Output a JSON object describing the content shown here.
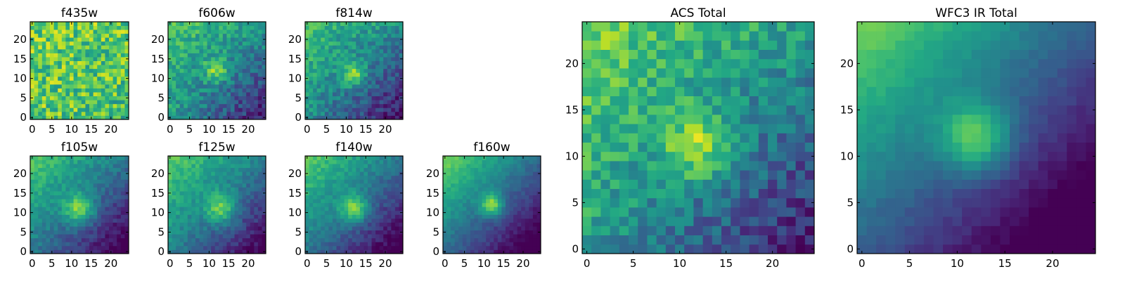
{
  "chart_data": [
    {
      "type": "heatmap",
      "title": "f435w",
      "colormap": "viridis",
      "xticks": [
        "0",
        "5",
        "10",
        "15",
        "20"
      ],
      "yticks": [
        "0",
        "5",
        "10",
        "15",
        "20"
      ],
      "xlim": [
        -0.5,
        24.5
      ],
      "ylim": [
        -0.5,
        24.5
      ],
      "grid": false,
      "peak": [
        12,
        11
      ],
      "peak_sigma": 3.0,
      "peak_strength": 0.0,
      "corner_bright": 0.0,
      "noise": 0.22,
      "base": 0.75,
      "seed": 11
    },
    {
      "type": "heatmap",
      "title": "f606w",
      "colormap": "viridis",
      "xticks": [
        "0",
        "5",
        "10",
        "15",
        "20"
      ],
      "yticks": [
        "0",
        "5",
        "10",
        "15",
        "20"
      ],
      "xlim": [
        -0.5,
        24.5
      ],
      "ylim": [
        -0.5,
        24.5
      ],
      "grid": false,
      "peak": [
        12,
        12
      ],
      "peak_sigma": 2.2,
      "peak_strength": 0.35,
      "corner_bright": 0.15,
      "noise": 0.14,
      "base": 0.55,
      "seed": 23
    },
    {
      "type": "heatmap",
      "title": "f814w",
      "colormap": "viridis",
      "xticks": [
        "0",
        "5",
        "10",
        "15",
        "20"
      ],
      "yticks": [
        "0",
        "5",
        "10",
        "15",
        "20"
      ],
      "xlim": [
        -0.5,
        24.5
      ],
      "ylim": [
        -0.5,
        24.5
      ],
      "grid": false,
      "peak": [
        12,
        11
      ],
      "peak_sigma": 2.2,
      "peak_strength": 0.4,
      "corner_bright": 0.2,
      "noise": 0.13,
      "base": 0.5,
      "seed": 37
    },
    {
      "type": "heatmap",
      "title": "f105w",
      "colormap": "viridis",
      "xticks": [
        "0",
        "5",
        "10",
        "15",
        "20"
      ],
      "yticks": [
        "0",
        "5",
        "10",
        "15",
        "20"
      ],
      "xlim": [
        -0.5,
        24.5
      ],
      "ylim": [
        -0.5,
        24.5
      ],
      "grid": false,
      "peak": [
        12,
        11
      ],
      "peak_sigma": 2.8,
      "peak_strength": 0.45,
      "corner_bright": 0.35,
      "noise": 0.08,
      "base": 0.4,
      "seed": 41
    },
    {
      "type": "heatmap",
      "title": "f125w",
      "colormap": "viridis",
      "xticks": [
        "0",
        "5",
        "10",
        "15",
        "20"
      ],
      "yticks": [
        "0",
        "5",
        "10",
        "15",
        "20"
      ],
      "xlim": [
        -0.5,
        24.5
      ],
      "ylim": [
        -0.5,
        24.5
      ],
      "grid": false,
      "peak": [
        13,
        11
      ],
      "peak_sigma": 2.8,
      "peak_strength": 0.4,
      "corner_bright": 0.3,
      "noise": 0.08,
      "base": 0.45,
      "seed": 53
    },
    {
      "type": "heatmap",
      "title": "f140w",
      "colormap": "viridis",
      "xticks": [
        "0",
        "5",
        "10",
        "15",
        "20"
      ],
      "yticks": [
        "0",
        "5",
        "10",
        "15",
        "20"
      ],
      "xlim": [
        -0.5,
        24.5
      ],
      "ylim": [
        -0.5,
        24.5
      ],
      "grid": false,
      "peak": [
        12,
        11
      ],
      "peak_sigma": 2.6,
      "peak_strength": 0.45,
      "corner_bright": 0.35,
      "noise": 0.07,
      "base": 0.4,
      "seed": 67
    },
    {
      "type": "heatmap",
      "title": "f160w",
      "colormap": "viridis",
      "xticks": [
        "0",
        "5",
        "10",
        "15",
        "20"
      ],
      "yticks": [
        "0",
        "5",
        "10",
        "15",
        "20"
      ],
      "xlim": [
        -0.5,
        24.5
      ],
      "ylim": [
        -0.5,
        24.5
      ],
      "grid": false,
      "peak": [
        12,
        12
      ],
      "peak_sigma": 2.0,
      "peak_strength": 0.5,
      "corner_bright": 0.45,
      "noise": 0.05,
      "base": 0.35,
      "seed": 79
    },
    {
      "type": "heatmap",
      "title": "ACS Total",
      "colormap": "viridis",
      "xticks": [
        "0",
        "5",
        "10",
        "15",
        "20"
      ],
      "yticks": [
        "0",
        "5",
        "10",
        "15",
        "20"
      ],
      "xlim": [
        -0.5,
        24.5
      ],
      "ylim": [
        -0.5,
        24.5
      ],
      "grid": false,
      "peak": [
        12,
        11
      ],
      "peak_sigma": 2.5,
      "peak_strength": 0.4,
      "corner_bright": 0.25,
      "noise": 0.14,
      "base": 0.55,
      "seed": 97
    },
    {
      "type": "heatmap",
      "title": "WFC3 IR Total",
      "colormap": "viridis",
      "xticks": [
        "0",
        "5",
        "10",
        "15",
        "20"
      ],
      "yticks": [
        "0",
        "5",
        "10",
        "15",
        "20"
      ],
      "xlim": [
        -0.5,
        24.5
      ],
      "ylim": [
        -0.5,
        24.5
      ],
      "grid": false,
      "peak": [
        12,
        12
      ],
      "peak_sigma": 2.6,
      "peak_strength": 0.45,
      "corner_bright": 0.5,
      "noise": 0.03,
      "base": 0.3,
      "seed": 113
    }
  ],
  "colors": {
    "frame": "#000000",
    "background": "#ffffff"
  }
}
